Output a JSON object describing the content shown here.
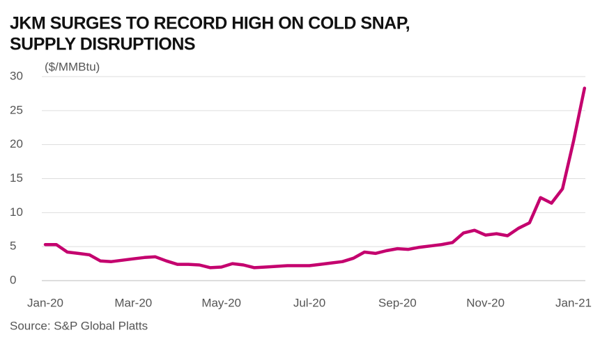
{
  "chart_data": {
    "type": "line",
    "title": [
      "JKM SURGES TO RECORD HIGH ON COLD SNAP,",
      "SUPPLY DISRUPTIONS"
    ],
    "y_label": "($/MMBtu)",
    "source": "Source: S&P Global Platts",
    "x": [
      "Jan-20",
      "Jan-20",
      "Jan-20",
      "Jan-20",
      "Feb-20",
      "Feb-20",
      "Feb-20",
      "Feb-20",
      "Mar-20",
      "Mar-20",
      "Mar-20",
      "Mar-20",
      "Apr-20",
      "Apr-20",
      "Apr-20",
      "Apr-20",
      "May-20",
      "May-20",
      "May-20",
      "May-20",
      "Jun-20",
      "Jun-20",
      "Jun-20",
      "Jun-20",
      "Jul-20",
      "Jul-20",
      "Jul-20",
      "Jul-20",
      "Aug-20",
      "Aug-20",
      "Aug-20",
      "Aug-20",
      "Sep-20",
      "Sep-20",
      "Sep-20",
      "Sep-20",
      "Oct-20",
      "Oct-20",
      "Oct-20",
      "Oct-20",
      "Nov-20",
      "Nov-20",
      "Nov-20",
      "Nov-20",
      "Dec-20",
      "Dec-20",
      "Dec-20",
      "Dec-20",
      "Jan-21",
      "Jan-21"
    ],
    "series": [
      {
        "name": "JKM",
        "color": "#c4006e",
        "values": [
          5.3,
          5.3,
          4.2,
          4.0,
          3.8,
          2.9,
          2.8,
          3.0,
          3.2,
          3.4,
          3.5,
          2.9,
          2.4,
          2.4,
          2.3,
          1.9,
          2.0,
          2.5,
          2.3,
          1.9,
          2.0,
          2.1,
          2.2,
          2.2,
          2.2,
          2.4,
          2.6,
          2.8,
          3.3,
          4.2,
          4.0,
          4.4,
          4.7,
          4.6,
          4.9,
          5.1,
          5.3,
          5.6,
          7.0,
          7.4,
          6.7,
          6.9,
          6.6,
          7.7,
          8.5,
          12.2,
          11.4,
          13.5,
          20.5,
          28.3
        ]
      }
    ],
    "xticks": [
      "Jan-20",
      "Mar-20",
      "May-20",
      "Jul-20",
      "Sep-20",
      "Nov-20",
      "Jan-21"
    ],
    "ylim": [
      0,
      30
    ],
    "yticks": [
      0,
      5,
      10,
      15,
      20,
      25,
      30
    ],
    "grid": true
  }
}
